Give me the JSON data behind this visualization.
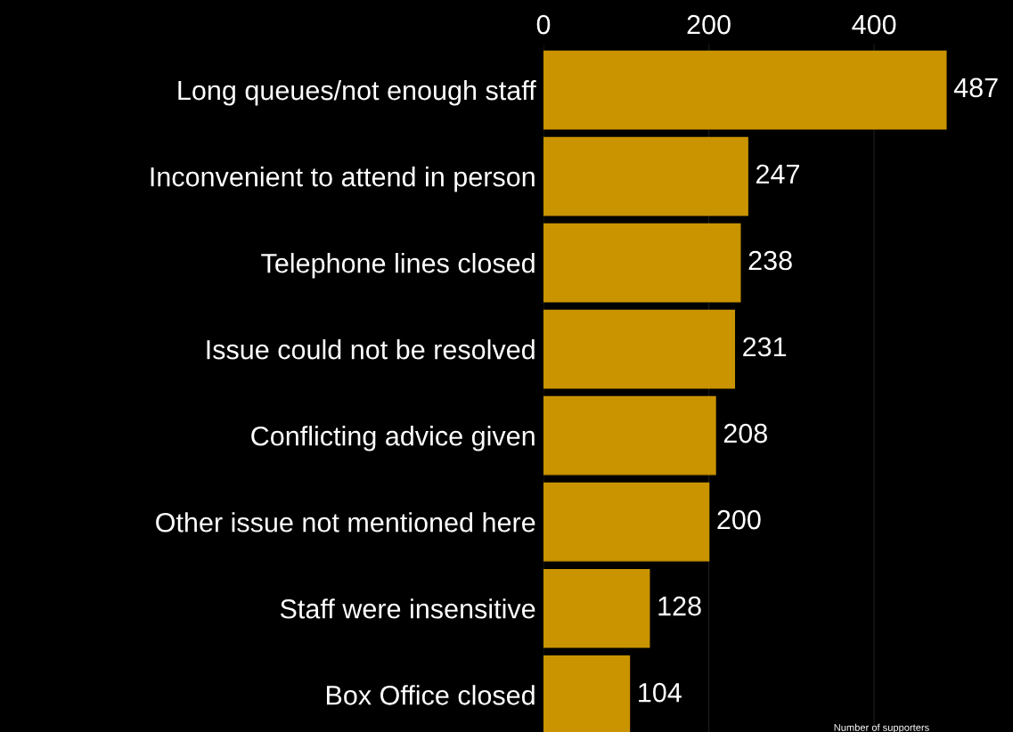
{
  "chart_data": {
    "type": "bar",
    "orientation": "horizontal",
    "xlabel": "Number of supporters",
    "categories": [
      "Long queues/not enough staff",
      "Inconvenient to attend in person",
      "Telephone lines closed",
      "Issue could not be resolved",
      "Conflicting advice given",
      "Other issue not mentioned here",
      "Staff were insensitive",
      "Box Office closed"
    ],
    "values": [
      487,
      247,
      238,
      231,
      208,
      200,
      128,
      104
    ],
    "color": "#c99400",
    "xlim": [
      0,
      568
    ],
    "xticks": [
      0,
      200,
      400
    ],
    "grid": "x",
    "data_labels": true
  }
}
